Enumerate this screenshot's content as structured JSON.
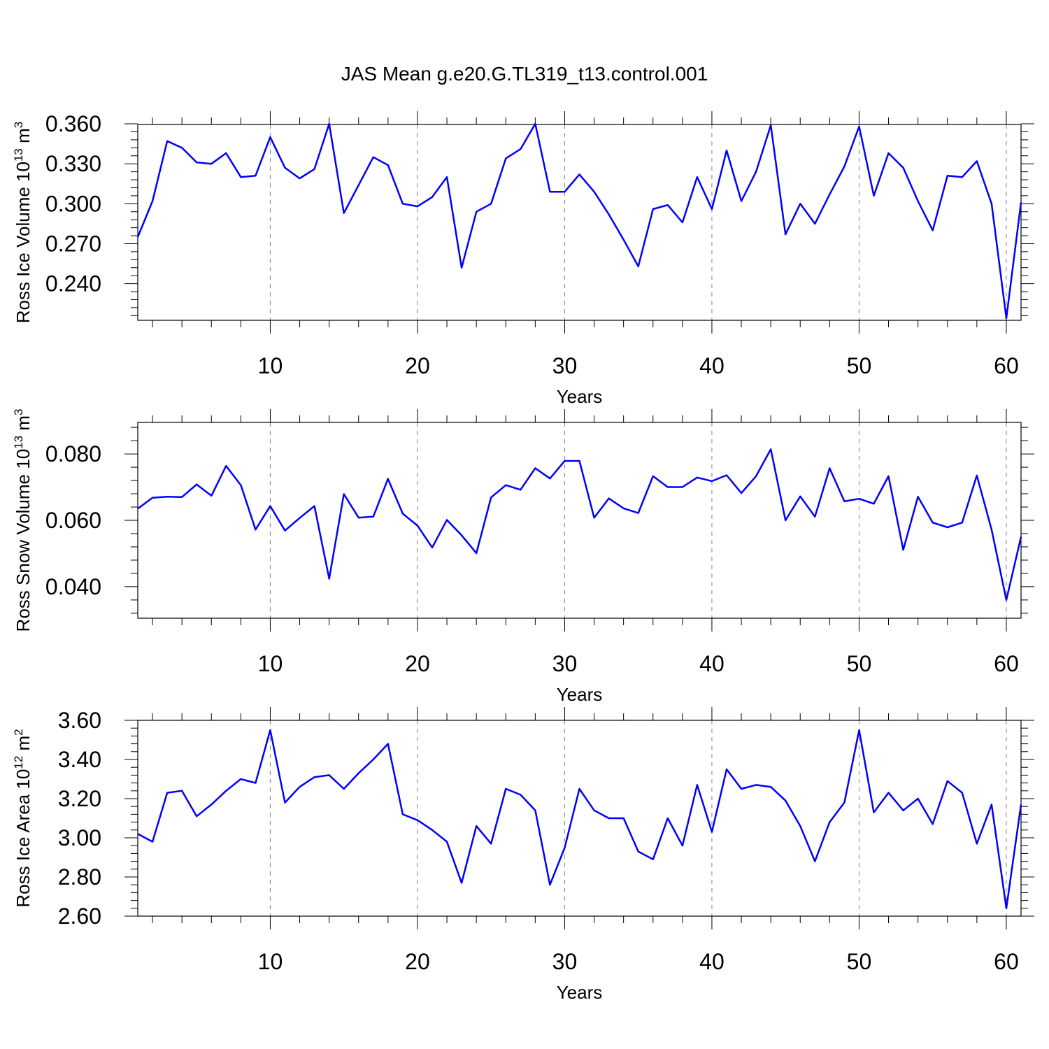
{
  "figure": {
    "title": "JAS Mean g.e20.G.TL319_t13.control.001"
  },
  "chart_data": [
    {
      "type": "line",
      "ylabel": "Ross Ice Volume 10",
      "ylabel_sup": "13",
      "ylabel_unit": "m",
      "ylabel_unit_sup": "3",
      "xlabel": "Years",
      "xlim": [
        1,
        61
      ],
      "ylim": [
        0.2125,
        0.3595
      ],
      "x_ticks": [
        10,
        20,
        30,
        40,
        50,
        60
      ],
      "x_tick_labels": [
        "10",
        "20",
        "30",
        "40",
        "50",
        "60"
      ],
      "y_ticks": [
        0.24,
        0.27,
        0.3,
        0.33,
        0.36
      ],
      "y_tick_labels": [
        "0.240",
        "0.270",
        "0.300",
        "0.330",
        "0.360"
      ],
      "grid": "vertical dashed at major x ticks",
      "series": [
        {
          "color": "#0000ff",
          "x": [
            1,
            2,
            3,
            4,
            5,
            6,
            7,
            8,
            9,
            10,
            11,
            12,
            13,
            14,
            15,
            16,
            17,
            18,
            19,
            20,
            21,
            22,
            23,
            24,
            25,
            26,
            27,
            28,
            29,
            30,
            31,
            32,
            33,
            34,
            35,
            36,
            37,
            38,
            39,
            40,
            41,
            42,
            43,
            44,
            45,
            46,
            47,
            48,
            49,
            50,
            51,
            52,
            53,
            54,
            55,
            56,
            57,
            58,
            59,
            60,
            61
          ],
          "values": [
            0.275,
            0.302,
            0.347,
            0.342,
            0.331,
            0.33,
            0.338,
            0.32,
            0.321,
            0.35,
            0.327,
            0.319,
            0.326,
            0.36,
            0.293,
            0.314,
            0.335,
            0.329,
            0.3,
            0.298,
            0.305,
            0.32,
            0.252,
            0.294,
            0.3,
            0.334,
            0.341,
            0.36,
            0.309,
            0.309,
            0.322,
            0.309,
            0.292,
            0.273,
            0.253,
            0.296,
            0.299,
            0.286,
            0.32,
            0.296,
            0.34,
            0.302,
            0.324,
            0.359,
            0.277,
            0.3,
            0.285,
            0.307,
            0.328,
            0.358,
            0.306,
            0.338,
            0.327,
            0.302,
            0.28,
            0.321,
            0.32,
            0.332,
            0.3,
            0.214,
            0.301
          ]
        }
      ]
    },
    {
      "type": "line",
      "ylabel": "Ross Snow Volume 10",
      "ylabel_sup": "13",
      "ylabel_unit": "m",
      "ylabel_unit_sup": "3",
      "xlabel": "Years",
      "xlim": [
        1,
        61
      ],
      "ylim": [
        0.0305,
        0.0895
      ],
      "x_ticks": [
        10,
        20,
        30,
        40,
        50,
        60
      ],
      "x_tick_labels": [
        "10",
        "20",
        "30",
        "40",
        "50",
        "60"
      ],
      "y_ticks": [
        0.04,
        0.06,
        0.08
      ],
      "y_tick_labels": [
        "0.040",
        "0.060",
        "0.080"
      ],
      "grid": "vertical dashed at major x ticks",
      "series": [
        {
          "color": "#0000ff",
          "x": [
            1,
            2,
            3,
            4,
            5,
            6,
            7,
            8,
            9,
            10,
            11,
            12,
            13,
            14,
            15,
            16,
            17,
            18,
            19,
            20,
            21,
            22,
            23,
            24,
            25,
            26,
            27,
            28,
            29,
            30,
            31,
            32,
            33,
            34,
            35,
            36,
            37,
            38,
            39,
            40,
            41,
            42,
            43,
            44,
            45,
            46,
            47,
            48,
            49,
            50,
            51,
            52,
            53,
            54,
            55,
            56,
            57,
            58,
            59,
            60,
            61
          ],
          "values": [
            0.0635,
            0.0668,
            0.0671,
            0.067,
            0.0708,
            0.0674,
            0.0764,
            0.0706,
            0.0572,
            0.0643,
            0.0569,
            0.0607,
            0.0643,
            0.0424,
            0.0679,
            0.0608,
            0.0611,
            0.0725,
            0.062,
            0.0584,
            0.0518,
            0.0601,
            0.0555,
            0.0501,
            0.0669,
            0.0706,
            0.0692,
            0.0757,
            0.0726,
            0.0779,
            0.0779,
            0.0608,
            0.0666,
            0.0636,
            0.0622,
            0.0733,
            0.07,
            0.07,
            0.0729,
            0.0718,
            0.0736,
            0.0682,
            0.0733,
            0.0814,
            0.06,
            0.0672,
            0.0611,
            0.0757,
            0.0657,
            0.0665,
            0.065,
            0.0733,
            0.0511,
            0.0671,
            0.0593,
            0.0579,
            0.0593,
            0.0735,
            0.0572,
            0.036,
            0.055
          ]
        }
      ]
    },
    {
      "type": "line",
      "ylabel": "Ross Ice Area 10",
      "ylabel_sup": "12",
      "ylabel_unit": "m",
      "ylabel_unit_sup": "2",
      "xlabel": "Years",
      "xlim": [
        1,
        61
      ],
      "ylim": [
        2.6,
        3.6
      ],
      "x_ticks": [
        10,
        20,
        30,
        40,
        50,
        60
      ],
      "x_tick_labels": [
        "10",
        "20",
        "30",
        "40",
        "50",
        "60"
      ],
      "y_ticks": [
        2.6,
        2.8,
        3.0,
        3.2,
        3.4,
        3.6
      ],
      "y_tick_labels": [
        "2.60",
        "2.80",
        "3.00",
        "3.20",
        "3.40",
        "3.60"
      ],
      "grid": "vertical dashed at major x ticks",
      "series": [
        {
          "color": "#0000ff",
          "x": [
            1,
            2,
            3,
            4,
            5,
            6,
            7,
            8,
            9,
            10,
            11,
            12,
            13,
            14,
            15,
            16,
            17,
            18,
            19,
            20,
            21,
            22,
            23,
            24,
            25,
            26,
            27,
            28,
            29,
            30,
            31,
            32,
            33,
            34,
            35,
            36,
            37,
            38,
            39,
            40,
            41,
            42,
            43,
            44,
            45,
            46,
            47,
            48,
            49,
            50,
            51,
            52,
            53,
            54,
            55,
            56,
            57,
            58,
            59,
            60,
            61
          ],
          "values": [
            3.02,
            2.98,
            3.23,
            3.24,
            3.11,
            3.17,
            3.24,
            3.3,
            3.28,
            3.55,
            3.18,
            3.26,
            3.31,
            3.32,
            3.25,
            3.33,
            3.4,
            3.48,
            3.12,
            3.09,
            3.04,
            2.98,
            2.77,
            3.06,
            2.97,
            3.25,
            3.22,
            3.14,
            2.76,
            2.95,
            3.25,
            3.14,
            3.1,
            3.1,
            2.93,
            2.89,
            3.1,
            2.96,
            3.27,
            3.03,
            3.35,
            3.25,
            3.27,
            3.26,
            3.19,
            3.06,
            2.88,
            3.08,
            3.18,
            3.55,
            3.13,
            3.23,
            3.14,
            3.2,
            3.07,
            3.29,
            3.23,
            2.97,
            3.17,
            2.64,
            3.17
          ]
        }
      ]
    }
  ]
}
